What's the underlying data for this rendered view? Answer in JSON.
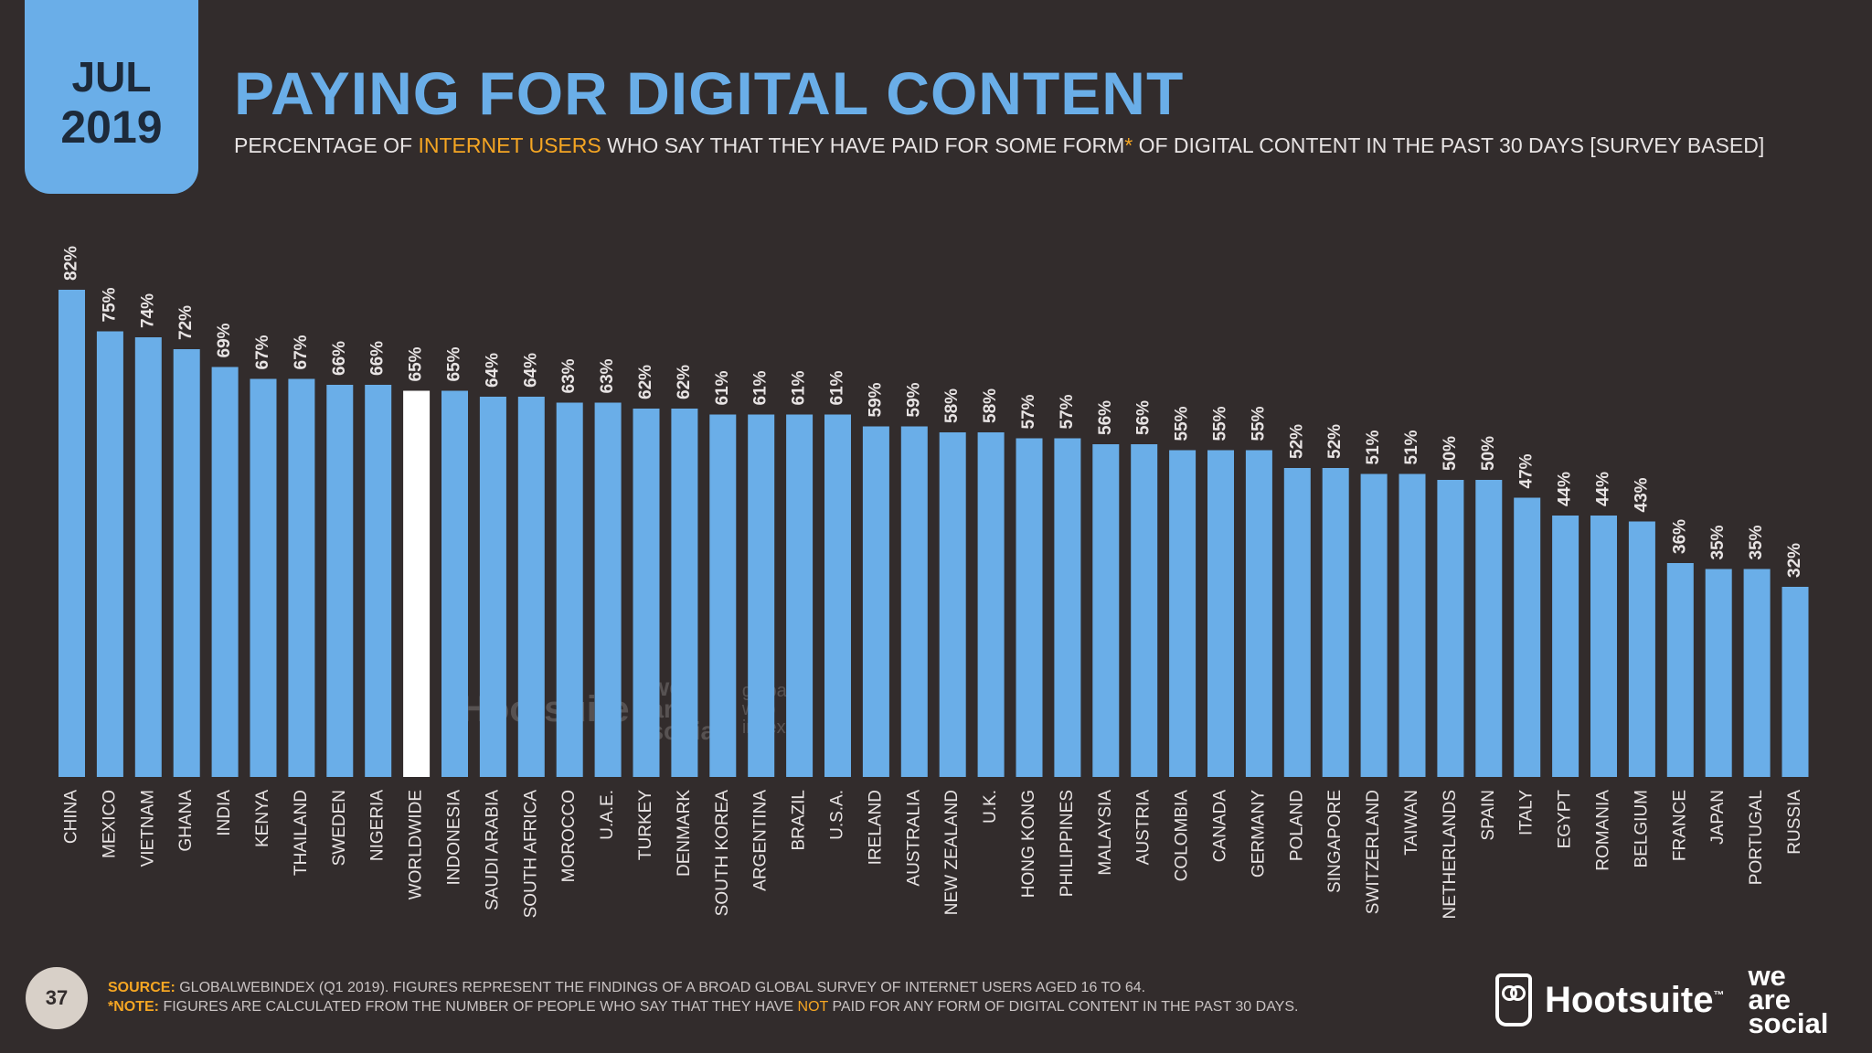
{
  "badge": {
    "month": "JUL",
    "year": "2019"
  },
  "header": {
    "title": "PAYING FOR DIGITAL CONTENT",
    "subtitle_pre": "PERCENTAGE OF ",
    "subtitle_highlight": "INTERNET USERS",
    "subtitle_post": " WHO SAY THAT THEY HAVE PAID FOR SOME FORM",
    "subtitle_star": "*",
    "subtitle_end": " OF DIGITAL CONTENT IN THE PAST 30 DAYS [SURVEY BASED]"
  },
  "colors": {
    "background": "#322c2c",
    "bar": "#6aaee8",
    "highlight_bar": "#ffffff",
    "accent": "#f5a623"
  },
  "chart_data": {
    "type": "bar",
    "categories": [
      "CHINA",
      "MEXICO",
      "VIETNAM",
      "GHANA",
      "INDIA",
      "KENYA",
      "THAILAND",
      "SWEDEN",
      "NIGERIA",
      "WORLDWIDE",
      "INDONESIA",
      "SAUDI ARABIA",
      "SOUTH AFRICA",
      "MOROCCO",
      "U.A.E.",
      "TURKEY",
      "DENMARK",
      "SOUTH KOREA",
      "ARGENTINA",
      "BRAZIL",
      "U.S.A.",
      "IRELAND",
      "AUSTRALIA",
      "NEW ZEALAND",
      "U.K.",
      "HONG KONG",
      "PHILIPPINES",
      "MALAYSIA",
      "AUSTRIA",
      "COLOMBIA",
      "CANADA",
      "GERMANY",
      "POLAND",
      "SINGAPORE",
      "SWITZERLAND",
      "TAIWAN",
      "NETHERLANDS",
      "SPAIN",
      "ITALY",
      "EGYPT",
      "ROMANIA",
      "BELGIUM",
      "FRANCE",
      "JAPAN",
      "PORTUGAL",
      "RUSSIA"
    ],
    "values": [
      82,
      75,
      74,
      72,
      69,
      67,
      67,
      66,
      66,
      65,
      65,
      64,
      64,
      63,
      63,
      62,
      62,
      61,
      61,
      61,
      61,
      59,
      59,
      58,
      58,
      57,
      57,
      56,
      56,
      55,
      55,
      55,
      52,
      52,
      51,
      51,
      50,
      50,
      47,
      44,
      44,
      43,
      36,
      35,
      35,
      32
    ],
    "labels": [
      "82%",
      "75%",
      "74%",
      "72%",
      "69%",
      "67%",
      "67%",
      "66%",
      "66%",
      "65%",
      "65%",
      "64%",
      "64%",
      "63%",
      "63%",
      "62%",
      "62%",
      "61%",
      "61%",
      "61%",
      "61%",
      "59%",
      "59%",
      "58%",
      "58%",
      "57%",
      "57%",
      "56%",
      "56%",
      "55%",
      "55%",
      "55%",
      "52%",
      "52%",
      "51%",
      "51%",
      "50%",
      "50%",
      "47%",
      "44%",
      "44%",
      "43%",
      "36%",
      "35%",
      "35%",
      "32%"
    ],
    "highlight": "WORLDWIDE",
    "ylim": [
      0,
      100
    ],
    "grid": false,
    "legend": "none"
  },
  "watermark": {
    "hootsuite": "Hootsuite",
    "was": [
      "we",
      "are",
      "social"
    ],
    "gwi": [
      "global",
      "web",
      "index"
    ]
  },
  "footer": {
    "page": "37",
    "source_label": "SOURCE:",
    "source_text": " GLOBALWEBINDEX (Q1 2019). FIGURES REPRESENT THE FINDINGS OF A BROAD GLOBAL SURVEY OF INTERNET USERS AGED 16 TO 64.",
    "note_label": "*NOTE:",
    "note_pre": " FIGURES ARE CALCULATED FROM THE NUMBER OF PEOPLE WHO SAY THAT THEY HAVE ",
    "note_not": "NOT",
    "note_post": " PAID FOR ANY FORM OF DIGITAL CONTENT IN THE PAST 30 DAYS."
  },
  "brand": {
    "hootsuite": "Hootsuite",
    "tm": "™",
    "was_1": "we",
    "was_2": "are",
    "was_3": "social"
  }
}
